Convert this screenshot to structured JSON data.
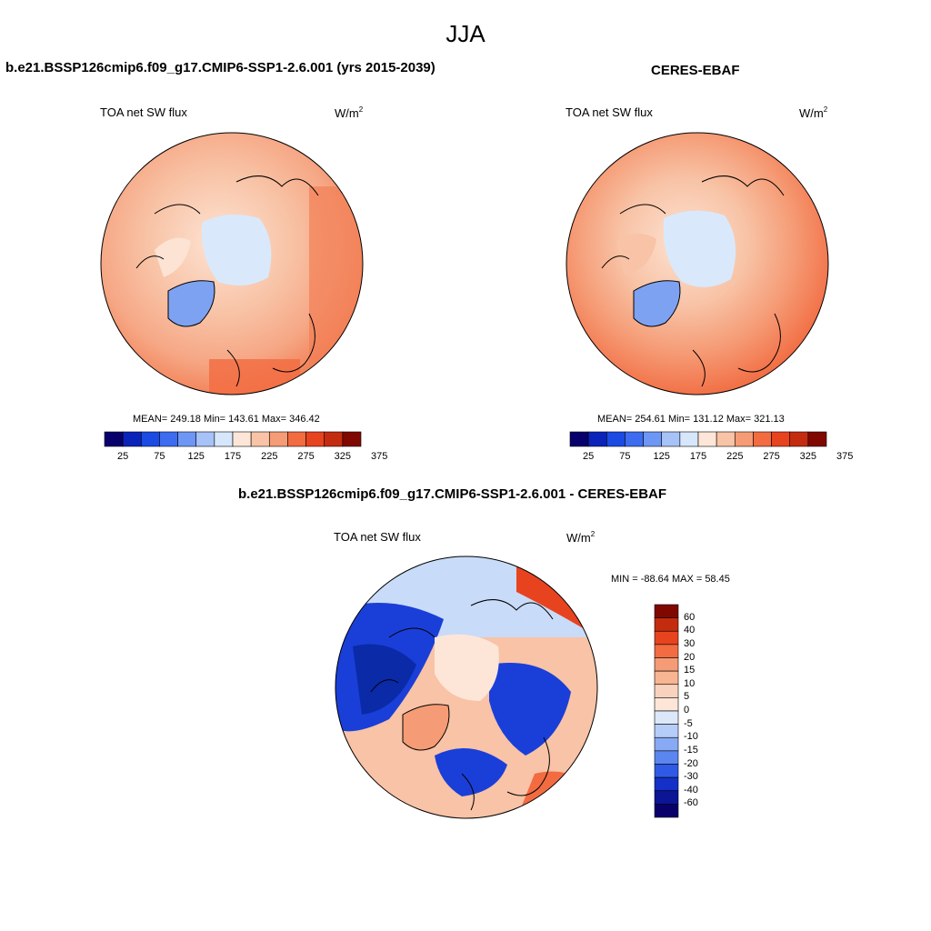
{
  "title": "JJA",
  "panels": [
    {
      "title": "b.e21.BSSP126cmip6.f09_g17.CMIP6-SSP1-2.6.001 (yrs 2015-2039)",
      "variable": "TOA net SW flux",
      "units": "W/m",
      "units_sup": "2",
      "stats": "MEAN= 249.18  Min= 143.61  Max= 346.42"
    },
    {
      "title": "CERES-EBAF",
      "variable": "TOA net SW flux",
      "units": "W/m",
      "units_sup": "2",
      "stats": "MEAN= 254.61  Min= 131.12  Max= 321.13"
    },
    {
      "title": "b.e21.BSSP126cmip6.f09_g17.CMIP6-SSP1-2.6.001 - CERES-EBAF",
      "variable": "TOA net SW flux",
      "units": "W/m",
      "units_sup": "2",
      "stats": "MIN = -88.64 MAX =  58.45"
    }
  ],
  "colorbar_abs": {
    "labels": [
      "25",
      "75",
      "125",
      "175",
      "225",
      "275",
      "325",
      "375"
    ],
    "colors": [
      "#08006b",
      "#0b23b8",
      "#1b4be3",
      "#3d6cf0",
      "#6e96f5",
      "#a6c2f7",
      "#d6e6fb",
      "#fde6d8",
      "#f8c3a6",
      "#f59b75",
      "#f26b41",
      "#e8431f",
      "#c42c10",
      "#800800"
    ]
  },
  "colorbar_diff": {
    "labels": [
      "60",
      "40",
      "30",
      "20",
      "15",
      "10",
      "5",
      "0",
      "-5",
      "-10",
      "-15",
      "-20",
      "-30",
      "-40",
      "-60"
    ],
    "colors": [
      "#800800",
      "#c42c10",
      "#e8431f",
      "#f26b41",
      "#f59b75",
      "#f8b592",
      "#f9d2bd",
      "#fde6d8",
      "#dbe8fa",
      "#b5cdf8",
      "#88aaf4",
      "#5c86ef",
      "#2f5ae6",
      "#1430c7",
      "#0b1595",
      "#08006b"
    ]
  },
  "colors": {
    "ocean_mid": "#f6a886",
    "ocean_warm": "#f27f55",
    "land_pale": "#fde3d3",
    "ice": "#d9e9fb",
    "greenland": "#7ea2f2",
    "diff_blue": "#1a3fd8",
    "diff_deep": "#0a2aa8",
    "diff_pale": "#c8dbf8",
    "diff_red": "#f4a07c"
  }
}
